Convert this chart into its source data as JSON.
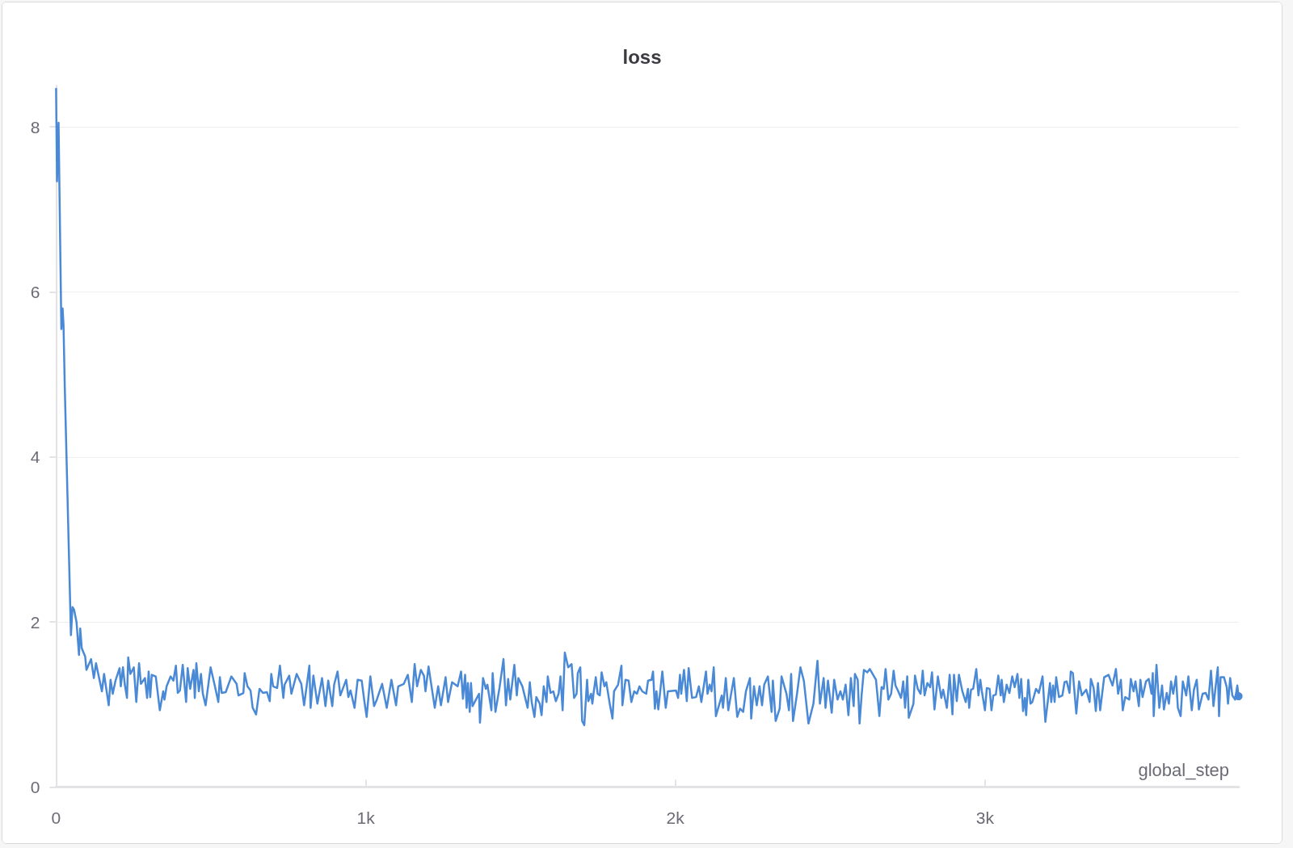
{
  "chart_data": {
    "type": "line",
    "title": "loss",
    "xlabel": "global_step",
    "xlim": [
      0,
      3820
    ],
    "xticks": [
      0,
      {
        "value": 1000,
        "label": "1k"
      },
      {
        "value": 2000,
        "label": "2k"
      },
      {
        "value": 3000,
        "label": "3k"
      }
    ],
    "ylim": [
      0,
      8.5
    ],
    "yticks": [
      0,
      2,
      4,
      6,
      8
    ],
    "grid": "y",
    "line_style": "solid",
    "x": [
      0,
      3,
      8,
      17,
      21,
      24,
      28,
      48,
      53,
      58,
      66,
      74,
      78,
      83,
      94,
      98,
      113,
      122,
      129,
      148,
      155,
      170,
      176,
      183,
      192,
      205,
      209,
      216,
      222,
      229,
      233,
      240,
      251,
      259,
      268,
      274,
      287,
      294,
      299,
      304,
      309,
      322,
      335,
      346,
      350,
      357,
      370,
      379,
      387,
      393,
      400,
      409,
      420,
      425,
      433,
      444,
      448,
      453,
      461,
      468,
      474,
      483,
      499,
      513,
      524,
      529,
      535,
      548,
      566,
      583,
      589,
      605,
      609,
      618,
      628,
      635,
      646,
      657,
      668,
      681,
      690,
      695,
      701,
      714,
      723,
      734,
      738,
      753,
      760,
      777,
      792,
      801,
      818,
      822,
      831,
      844,
      859,
      870,
      879,
      892,
      898,
      909,
      918,
      937,
      944,
      951,
      964,
      974,
      987,
      996,
      1003,
      1015,
      1027,
      1036,
      1053,
      1068,
      1083,
      1098,
      1105,
      1123,
      1136,
      1149,
      1158,
      1166,
      1178,
      1188,
      1193,
      1203,
      1223,
      1234,
      1243,
      1258,
      1266,
      1279,
      1297,
      1308,
      1314,
      1321,
      1326,
      1330,
      1336,
      1340,
      1345,
      1366,
      1369,
      1379,
      1388,
      1393,
      1406,
      1410,
      1419,
      1432,
      1445,
      1453,
      1460,
      1467,
      1480,
      1488,
      1493,
      1506,
      1523,
      1530,
      1536,
      1545,
      1551,
      1562,
      1568,
      1575,
      1584,
      1588,
      1597,
      1606,
      1614,
      1623,
      1629,
      1636,
      1643,
      1654,
      1665,
      1673,
      1681,
      1685,
      1693,
      1699,
      1706,
      1715,
      1719,
      1728,
      1732,
      1736,
      1743,
      1749,
      1756,
      1762,
      1771,
      1777,
      1789,
      1797,
      1802,
      1815,
      1826,
      1829,
      1839,
      1849,
      1858,
      1867,
      1876,
      1884,
      1893,
      1906,
      1912,
      1923,
      1928,
      1934,
      1939,
      1945,
      1958,
      1969,
      1976,
      2002,
      2009,
      2015,
      2019,
      2028,
      2037,
      2043,
      2054,
      2067,
      2076,
      2084,
      2099,
      2104,
      2111,
      2117,
      2124,
      2131,
      2141,
      2150,
      2154,
      2163,
      2171,
      2189,
      2200,
      2209,
      2219,
      2228,
      2241,
      2245,
      2254,
      2263,
      2272,
      2280,
      2287,
      2299,
      2311,
      2315,
      2324,
      2337,
      2343,
      2359,
      2367,
      2374,
      2380,
      2393,
      2404,
      2415,
      2430,
      2446,
      2459,
      2467,
      2479,
      2485,
      2493,
      2505,
      2513,
      2524,
      2533,
      2541,
      2550,
      2559,
      2567,
      2576,
      2580,
      2589,
      2595,
      2602,
      2609,
      2620,
      2628,
      2648,
      2659,
      2666,
      2673,
      2679,
      2688,
      2697,
      2705,
      2711,
      2720,
      2729,
      2736,
      2742,
      2749,
      2754,
      2769,
      2774,
      2783,
      2792,
      2799,
      2805,
      2814,
      2823,
      2829,
      2837,
      2848,
      2859,
      2865,
      2877,
      2886,
      2895,
      2900,
      2909,
      2916,
      2927,
      2938,
      2945,
      2949,
      2955,
      2962,
      2972,
      2979,
      2985,
      2990,
      3000,
      3006,
      3015,
      3021,
      3027,
      3035,
      3043,
      3051,
      3054,
      3061,
      3070,
      3079,
      3088,
      3096,
      3105,
      3111,
      3117,
      3123,
      3129,
      3133,
      3140,
      3147,
      3153,
      3165,
      3174,
      3186,
      3195,
      3210,
      3214,
      3220,
      3225,
      3230,
      3239,
      3250,
      3257,
      3264,
      3273,
      3277,
      3284,
      3295,
      3304,
      3313,
      3327,
      3338,
      3342,
      3351,
      3358,
      3365,
      3372,
      3385,
      3399,
      3412,
      3423,
      3430,
      3439,
      3445,
      3453,
      3466,
      3471,
      3480,
      3486,
      3497,
      3502,
      3509,
      3520,
      3529,
      3538,
      3542,
      3545,
      3554,
      3563,
      3572,
      3578,
      3587,
      3594,
      3601,
      3608,
      3617,
      3623,
      3632,
      3639,
      3650,
      3657,
      3668,
      3675,
      3684,
      3691,
      3703,
      3713,
      3722,
      3730,
      3738,
      3752,
      3756,
      3761,
      3772,
      3781,
      3785,
      3792,
      3799,
      3808,
      3815,
      3819
    ],
    "series": [
      {
        "color": "#4a89d6",
        "values": [
          8.46,
          7.34,
          8.05,
          5.55,
          5.8,
          5.6,
          4.86,
          1.84,
          2.18,
          2.15,
          2.0,
          1.6,
          1.92,
          1.68,
          1.58,
          1.42,
          1.55,
          1.32,
          1.5,
          1.16,
          1.37,
          0.99,
          1.3,
          1.13,
          1.29,
          1.44,
          1.22,
          1.45,
          1.24,
          1.08,
          1.57,
          1.37,
          1.45,
          1.03,
          1.5,
          1.25,
          1.32,
          1.08,
          1.4,
          1.09,
          1.36,
          1.34,
          0.93,
          1.16,
          1.06,
          1.22,
          1.34,
          1.29,
          1.47,
          1.14,
          1.17,
          1.48,
          1.03,
          1.44,
          1.19,
          1.42,
          1.08,
          1.5,
          1.16,
          1.37,
          1.13,
          0.99,
          1.45,
          1.22,
          1.03,
          1.33,
          1.14,
          1.15,
          1.34,
          1.25,
          1.11,
          1.14,
          1.38,
          1.22,
          1.17,
          0.96,
          0.88,
          1.19,
          1.14,
          1.15,
          1.04,
          1.37,
          1.22,
          1.2,
          1.47,
          1.08,
          1.24,
          1.35,
          1.13,
          1.37,
          1.25,
          0.99,
          1.47,
          0.96,
          1.35,
          1.01,
          1.32,
          0.98,
          1.29,
          0.98,
          1.24,
          1.4,
          1.11,
          1.3,
          1.09,
          1.17,
          0.96,
          1.3,
          1.29,
          1.03,
          0.85,
          1.34,
          0.98,
          1.06,
          1.25,
          0.96,
          1.3,
          0.99,
          1.22,
          1.25,
          1.36,
          1.03,
          1.49,
          1.22,
          1.42,
          1.35,
          1.16,
          1.46,
          0.96,
          1.22,
          0.99,
          1.33,
          1.03,
          1.27,
          1.22,
          1.4,
          1.07,
          1.36,
          0.96,
          1.26,
          0.91,
          1.26,
          0.98,
          1.13,
          0.78,
          1.32,
          1.19,
          1.24,
          0.93,
          1.38,
          0.91,
          1.2,
          1.55,
          0.99,
          1.31,
          1.06,
          1.48,
          1.11,
          1.32,
          1.22,
          0.96,
          1.27,
          1.03,
          0.85,
          1.09,
          1.01,
          0.87,
          1.22,
          1.03,
          1.34,
          1.14,
          1.16,
          1.04,
          1.13,
          1.34,
          0.93,
          1.63,
          1.45,
          1.49,
          1.08,
          1.13,
          1.38,
          1.45,
          0.8,
          0.75,
          1.3,
          1.04,
          1.13,
          1.01,
          1.14,
          1.33,
          1.13,
          1.11,
          1.39,
          1.22,
          1.27,
          0.99,
          0.83,
          1.16,
          1.24,
          1.47,
          0.99,
          1.3,
          1.29,
          1.03,
          1.16,
          1.13,
          1.22,
          1.16,
          1.13,
          1.29,
          1.3,
          1.4,
          0.95,
          1.16,
          0.94,
          1.4,
          0.96,
          1.16,
          1.17,
          1.08,
          1.36,
          1.13,
          1.42,
          1.04,
          1.44,
          1.08,
          1.09,
          1.22,
          1.03,
          1.4,
          1.13,
          1.24,
          1.16,
          1.45,
          0.86,
          0.99,
          1.11,
          0.96,
          1.32,
          0.93,
          1.32,
          0.85,
          0.95,
          0.91,
          1.16,
          1.32,
          0.83,
          1.22,
          0.99,
          1.22,
          0.99,
          1.24,
          1.34,
          0.91,
          1.29,
          0.8,
          0.95,
          1.34,
          1.13,
          0.93,
          1.37,
          0.8,
          1.13,
          1.45,
          1.29,
          0.77,
          1.01,
          1.53,
          1.01,
          1.32,
          0.96,
          1.29,
          0.9,
          1.3,
          1.06,
          1.16,
          1.06,
          1.24,
          0.87,
          1.32,
          0.98,
          1.37,
          1.3,
          0.77,
          1.13,
          1.42,
          1.39,
          1.43,
          1.3,
          0.86,
          1.21,
          1.19,
          1.43,
          1.06,
          1.13,
          1.41,
          1.23,
          1.16,
          1.08,
          1.28,
          0.96,
          1.34,
          0.84,
          1.01,
          1.35,
          1.19,
          1.13,
          1.41,
          1.11,
          1.26,
          1.21,
          1.39,
          0.94,
          1.34,
          1.08,
          1.18,
          0.96,
          1.36,
          0.88,
          1.36,
          1.04,
          1.36,
          1.16,
          1.03,
          1.19,
          0.96,
          1.18,
          1.19,
          1.43,
          1.11,
          1.3,
          1.16,
          0.93,
          1.2,
          1.19,
          0.93,
          1.11,
          1.12,
          1.35,
          1.11,
          1.3,
          1.03,
          1.24,
          1.14,
          1.34,
          1.21,
          1.37,
          1.08,
          1.31,
          0.92,
          1.08,
          0.87,
          1.3,
          1.01,
          1.03,
          1.19,
          1.14,
          1.34,
          0.79,
          1.26,
          1.03,
          1.23,
          1.03,
          1.33,
          1.09,
          1.11,
          1.27,
          1.28,
          1.14,
          1.4,
          1.38,
          0.89,
          1.28,
          1.11,
          1.18,
          1.03,
          1.31,
          1.2,
          0.92,
          1.26,
          0.93,
          1.33,
          1.36,
          1.23,
          1.43,
          1.13,
          1.3,
          0.93,
          1.09,
          1.06,
          1.31,
          1.16,
          1.28,
          0.98,
          1.3,
          1.09,
          1.28,
          1.31,
          1.13,
          1.38,
          0.86,
          1.48,
          0.96,
          1.23,
          0.94,
          1.14,
          1.01,
          1.28,
          1.13,
          1.34,
          0.96,
          0.86,
          1.28,
          1.11,
          1.34,
          0.93,
          1.18,
          1.3,
          0.94,
          1.13,
          1.14,
          1.06,
          1.41,
          0.98,
          1.45,
          0.86,
          1.33,
          1.33,
          1.21,
          1.01,
          1.32,
          1.11,
          1.06,
          1.23,
          1.1
        ]
      }
    ]
  }
}
